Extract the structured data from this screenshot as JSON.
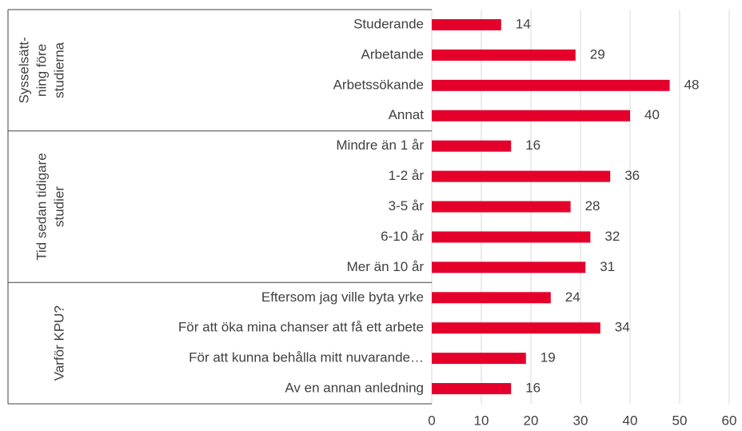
{
  "chart_data": {
    "type": "bar",
    "color": "#e4002b",
    "xlim": [
      0,
      60
    ],
    "xticks": [
      0,
      10,
      20,
      30,
      40,
      50,
      60
    ],
    "grid": true,
    "groups": [
      {
        "label": [
          "Sysselsätt-",
          "ning före",
          "studierna"
        ],
        "categories": [
          "Studerande",
          "Arbetande",
          "Arbetssökande",
          "Annat"
        ],
        "values": [
          14,
          29,
          48,
          40
        ]
      },
      {
        "label": [
          "Tid sedan tidigare",
          "studier"
        ],
        "categories": [
          "Mindre än 1 år",
          "1-2 år",
          "3-5 år",
          "6-10 år",
          "Mer än 10 år"
        ],
        "values": [
          16,
          36,
          28,
          32,
          31
        ]
      },
      {
        "label": [
          "Varför KPU?"
        ],
        "categories": [
          "Eftersom jag ville byta yrke",
          "För att öka mina chanser att få ett arbete",
          "För att kunna behålla mitt nuvarande…",
          "Av en annan anledning"
        ],
        "values": [
          24,
          34,
          19,
          16
        ]
      }
    ]
  }
}
